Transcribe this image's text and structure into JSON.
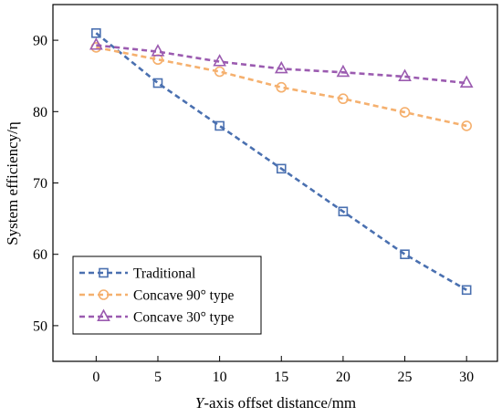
{
  "chart_data": {
    "type": "line",
    "xlabel_italic": "Y",
    "xlabel_rest": "-axis offset distance/mm",
    "ylabel": "System efficiency/η",
    "x": [
      0,
      5,
      10,
      15,
      20,
      25,
      30
    ],
    "xlim": [
      -3.5,
      32.5
    ],
    "ylim": [
      45,
      95
    ],
    "xticks": [
      0,
      5,
      10,
      15,
      20,
      25,
      30
    ],
    "yticks": [
      50,
      60,
      70,
      80,
      90
    ],
    "grid": false,
    "legend_position": "bottom-left",
    "series": [
      {
        "name": "Traditional",
        "values": [
          91,
          84,
          78,
          72,
          66,
          60,
          55
        ],
        "color": "#4a70b0",
        "marker": "square"
      },
      {
        "name": "Concave 90° type",
        "values": [
          89,
          87.3,
          85.6,
          83.4,
          81.8,
          79.9,
          78
        ],
        "color": "#f5b06e",
        "marker": "circle"
      },
      {
        "name": "Concave 30° type",
        "values": [
          89.3,
          88.4,
          87,
          86,
          85.5,
          84.9,
          84
        ],
        "color": "#9b5bb0",
        "marker": "triangle"
      }
    ]
  }
}
